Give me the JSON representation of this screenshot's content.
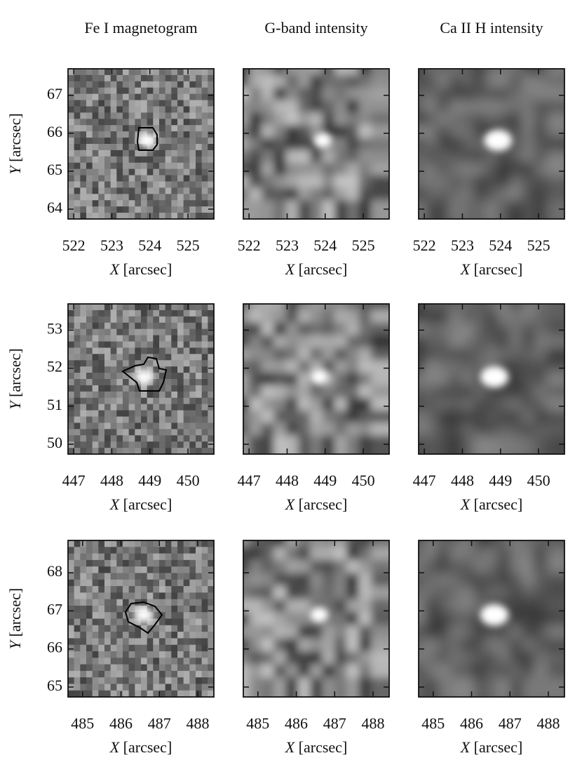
{
  "column_titles": [
    "Fe I magnetogram",
    "G-band intensity",
    "Ca II H intensity"
  ],
  "x_label": "X [arcsec]",
  "y_label": "Y [arcsec]",
  "rows": [
    {
      "xlim": [
        521.85,
        525.68
      ],
      "xticks": [
        522,
        523,
        524,
        525
      ],
      "ylim": [
        63.74,
        67.7
      ],
      "yticks": [
        64,
        65,
        66,
        67
      ]
    },
    {
      "xlim": [
        446.85,
        450.68
      ],
      "xticks": [
        447,
        448,
        449,
        450
      ],
      "ylim": [
        49.74,
        53.69
      ],
      "yticks": [
        50,
        51,
        52,
        53
      ]
    },
    {
      "xlim": [
        484.62,
        488.42
      ],
      "xticks": [
        485,
        486,
        487,
        488
      ],
      "ylim": [
        64.74,
        68.85
      ],
      "yticks": [
        65,
        66,
        67,
        68
      ]
    }
  ]
}
